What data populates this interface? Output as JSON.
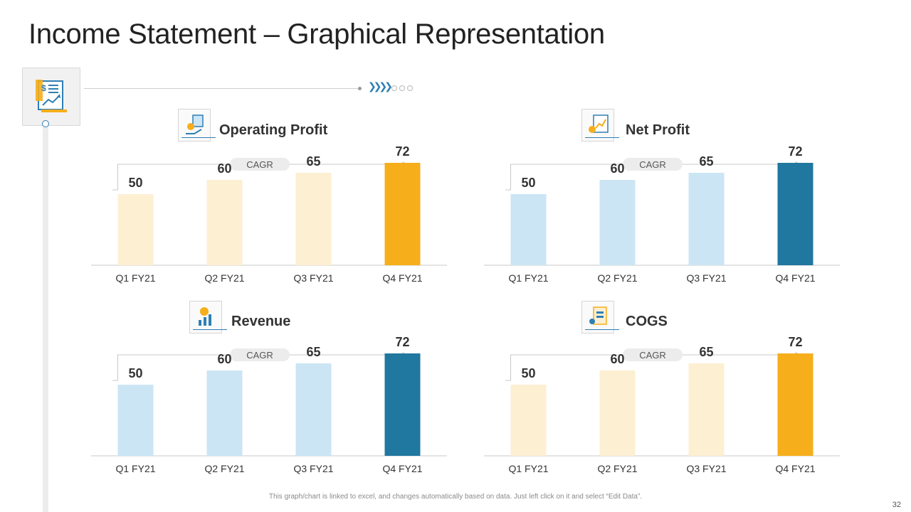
{
  "title": "Income Statement – Graphical Representation",
  "footnote": "This graph/chart is linked to excel,  and changes automatically based on data. Just left click on it and select “Edit Data”.",
  "page_number": "32",
  "colors": {
    "orange_light": "#fdefd2",
    "orange": "#f6ae1b",
    "blue_light": "#cbe5f4",
    "blue": "#20779f",
    "axis": "#c8c8c8",
    "label": "#333333"
  },
  "icons": {
    "main": "income-statement-icon",
    "operating_profit": "money-hand-icon",
    "net_profit": "profit-report-icon",
    "revenue": "revenue-growth-icon",
    "cogs": "cost-document-icon"
  },
  "chart_data": [
    {
      "type": "bar",
      "title": "Operating Profit",
      "annotation": "CAGR",
      "categories": [
        "Q1 FY21",
        "Q2 FY21",
        "Q3 FY21",
        "Q4 FY21"
      ],
      "values": [
        50,
        60,
        65,
        72
      ],
      "bar_colors": [
        "#fdefd2",
        "#fdefd2",
        "#fdefd2",
        "#f6ae1b"
      ],
      "ylim": [
        0,
        80
      ],
      "grid": false,
      "data_labels": true
    },
    {
      "type": "bar",
      "title": "Net Profit",
      "annotation": "CAGR",
      "categories": [
        "Q1 FY21",
        "Q2 FY21",
        "Q3 FY21",
        "Q4 FY21"
      ],
      "values": [
        50,
        60,
        65,
        72
      ],
      "bar_colors": [
        "#cbe5f4",
        "#cbe5f4",
        "#cbe5f4",
        "#20779f"
      ],
      "ylim": [
        0,
        80
      ],
      "grid": false,
      "data_labels": true
    },
    {
      "type": "bar",
      "title": "Revenue",
      "annotation": "CAGR",
      "categories": [
        "Q1 FY21",
        "Q2 FY21",
        "Q3 FY21",
        "Q4 FY21"
      ],
      "values": [
        50,
        60,
        65,
        72
      ],
      "bar_colors": [
        "#cbe5f4",
        "#cbe5f4",
        "#cbe5f4",
        "#20779f"
      ],
      "ylim": [
        0,
        80
      ],
      "grid": false,
      "data_labels": true
    },
    {
      "type": "bar",
      "title": "COGS",
      "annotation": "CAGR",
      "categories": [
        "Q1 FY21",
        "Q2 FY21",
        "Q3 FY21",
        "Q4 FY21"
      ],
      "values": [
        50,
        60,
        65,
        72
      ],
      "bar_colors": [
        "#fdefd2",
        "#fdefd2",
        "#fdefd2",
        "#f6ae1b"
      ],
      "ylim": [
        0,
        80
      ],
      "grid": false,
      "data_labels": true
    }
  ]
}
